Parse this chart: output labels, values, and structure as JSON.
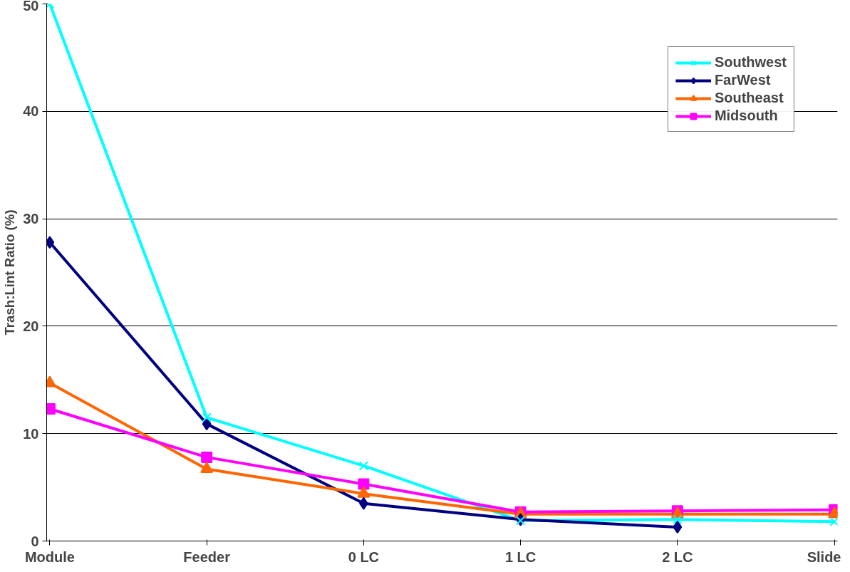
{
  "chart_data": {
    "type": "line",
    "ylabel": "Trash:Lint Ratio (%)",
    "categories": [
      "Module",
      "Feeder",
      "0 LC",
      "1 LC",
      "2 LC",
      "Slide"
    ],
    "series": [
      {
        "name": "Southwest",
        "color": "#00ffff",
        "marker": "x",
        "values": [
          50,
          11.5,
          7.0,
          1.9,
          2.0,
          1.8
        ]
      },
      {
        "name": "FarWest",
        "color": "#000080",
        "marker": "diamond",
        "values": [
          27.8,
          10.9,
          3.5,
          2.0,
          1.3,
          null
        ]
      },
      {
        "name": "Southeast",
        "color": "#ff6600",
        "marker": "triangle",
        "values": [
          14.7,
          6.7,
          4.4,
          2.5,
          2.5,
          2.5
        ]
      },
      {
        "name": "Midsouth",
        "color": "#ff00ff",
        "marker": "square",
        "values": [
          12.3,
          7.8,
          5.3,
          2.7,
          2.8,
          2.9
        ]
      }
    ],
    "ylim": [
      0,
      50
    ],
    "yticks": [
      0,
      10,
      20,
      30,
      40,
      50
    ],
    "grid": "y",
    "legend": "top right",
    "line_style": "solid"
  }
}
